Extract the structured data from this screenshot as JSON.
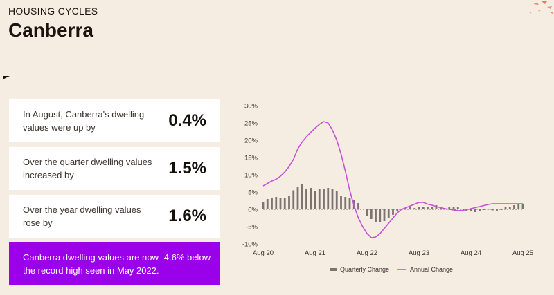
{
  "header": {
    "eyebrow": "HOUSING CYCLES",
    "title": "Canberra"
  },
  "cards": [
    {
      "text": "In August, Canberra's dwelling values were up by",
      "value": "0.4%"
    },
    {
      "text": "Over the quarter dwelling values increased by",
      "value": "1.5%"
    },
    {
      "text": "Over the year dwelling values rose by",
      "value": "1.6%"
    }
  ],
  "banner": {
    "text": "Canberra dwelling values are now -4.6% below the record high seen in May 2022."
  },
  "colors": {
    "accent": "#9b00ea",
    "quarterly": "#7b7470",
    "annual": "#c64fd8",
    "background": "#f6ede2",
    "decor": "#e87b5a"
  },
  "icons": {
    "decor": "abstract-dots-icon",
    "divider": "triangle-marker-icon"
  },
  "chart_data": {
    "type": "bar",
    "title": "",
    "xlabel": "",
    "ylabel": "",
    "ylim": [
      -10,
      30
    ],
    "yticks": [
      "30%",
      "25%",
      "20%",
      "15%",
      "10%",
      "5%",
      "0%",
      "-5%",
      "-10%"
    ],
    "ytick_values": [
      30,
      25,
      20,
      15,
      10,
      5,
      0,
      -5,
      -10
    ],
    "xticks": [
      "Aug 20",
      "Aug 21",
      "Aug 22",
      "Aug 23",
      "Aug 24",
      "Aug 25"
    ],
    "xtick_index": [
      0,
      12,
      24,
      36,
      48,
      60
    ],
    "x_start": "Aug 20",
    "x_end": "Aug 25",
    "legend": [
      "Quarterly Change",
      "Annual Change"
    ],
    "legend_position": "bottom",
    "series": [
      {
        "name": "Quarterly Change",
        "type": "bar",
        "values": [
          2.2,
          3.0,
          3.4,
          3.6,
          3.2,
          3.4,
          4.0,
          5.5,
          6.4,
          7.2,
          6.0,
          6.2,
          5.4,
          5.8,
          6.0,
          6.2,
          5.8,
          5.2,
          4.0,
          3.6,
          3.2,
          2.6,
          1.8,
          0.2,
          -1.8,
          -2.8,
          -3.6,
          -3.8,
          -3.4,
          -2.6,
          -1.6,
          -0.6,
          0.0,
          0.3,
          0.6,
          0.4,
          0.8,
          0.6,
          0.6,
          0.8,
          1.2,
          0.8,
          0.2,
          0.6,
          0.8,
          0.6,
          0.2,
          -0.4,
          -0.6,
          -0.8,
          -0.4,
          -0.2,
          0.0,
          -0.3,
          -0.6,
          -0.2,
          0.6,
          0.8,
          1.2,
          1.5,
          1.5
        ]
      },
      {
        "name": "Annual Change",
        "type": "line",
        "values": [
          6.8,
          7.5,
          8.2,
          8.7,
          9.6,
          10.8,
          12.4,
          14.5,
          17.5,
          19.5,
          21.0,
          22.3,
          23.5,
          24.6,
          25.4,
          25.0,
          23.0,
          20.0,
          16.0,
          11.0,
          5.5,
          1.0,
          -2.5,
          -5.0,
          -7.0,
          -8.2,
          -8.0,
          -7.0,
          -5.5,
          -4.0,
          -2.5,
          -1.0,
          0.0,
          0.5,
          1.0,
          1.5,
          2.0,
          2.0,
          1.5,
          1.2,
          0.8,
          0.5,
          0.2,
          0.0,
          -0.2,
          -0.4,
          -0.3,
          -0.1,
          0.2,
          0.5,
          0.8,
          1.1,
          1.4,
          1.6,
          1.6,
          1.6,
          1.6,
          1.6,
          1.6,
          1.6,
          1.6
        ]
      }
    ]
  }
}
